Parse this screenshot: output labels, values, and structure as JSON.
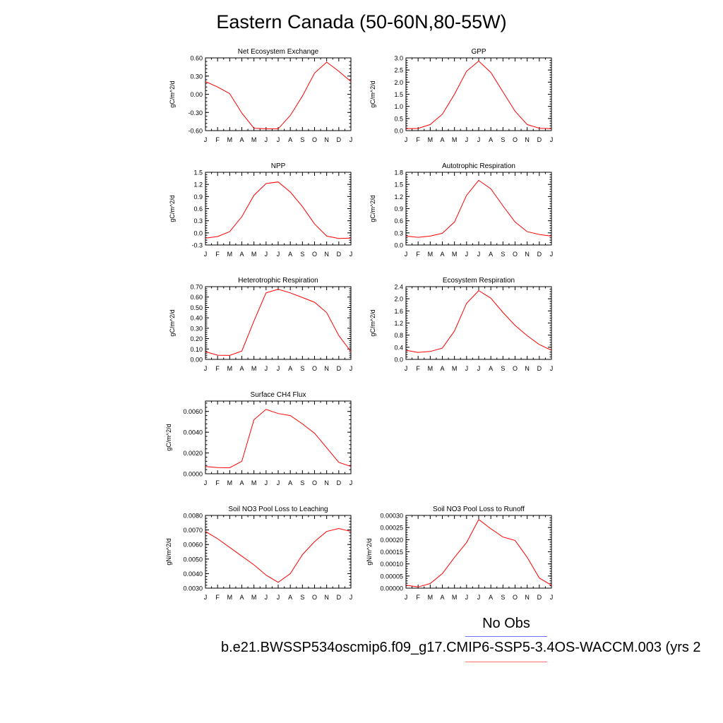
{
  "figure": {
    "title": "Eastern Canada (50-60N,80-55W)",
    "legend_label": "No Obs",
    "case_label": "b.e21.BWSSP534oscmip6.f09_g17.CMIP6-SSP5-3.4OS-WACCM.003 (yrs 2",
    "colors": {
      "model_line": "#ff0000",
      "obs_line": "#6f6fff",
      "model_legend_line": "#ff6f6f"
    }
  },
  "chart_data": [
    {
      "type": "line",
      "title": "Net Ecosystem Exchange",
      "ylabel": "gC/m^2/d",
      "categories": [
        "J",
        "F",
        "M",
        "A",
        "M",
        "J",
        "J",
        "A",
        "S",
        "O",
        "N",
        "D",
        "J"
      ],
      "values": [
        0.21,
        0.12,
        0.01,
        -0.31,
        -0.56,
        -0.57,
        -0.57,
        -0.35,
        -0.03,
        0.35,
        0.53,
        0.38,
        0.21
      ],
      "ylim": [
        -0.6,
        0.6
      ],
      "yticks": [
        "-0.60",
        "-0.30",
        "0.00",
        "0.30",
        "0.60"
      ]
    },
    {
      "type": "line",
      "title": "GPP",
      "ylabel": "gC/m^2/d",
      "categories": [
        "J",
        "F",
        "M",
        "A",
        "M",
        "J",
        "J",
        "A",
        "S",
        "O",
        "N",
        "D",
        "J"
      ],
      "values": [
        0.08,
        0.09,
        0.25,
        0.68,
        1.5,
        2.45,
        2.87,
        2.4,
        1.6,
        0.8,
        0.25,
        0.1,
        0.08
      ],
      "ylim": [
        0.0,
        3.0
      ],
      "yticks": [
        "0.0",
        "0.5",
        "1.0",
        "1.5",
        "2.0",
        "2.5",
        "3.0"
      ]
    },
    {
      "type": "line",
      "title": "NPP",
      "ylabel": "gC/m^2/d",
      "categories": [
        "J",
        "F",
        "M",
        "A",
        "M",
        "J",
        "J",
        "A",
        "S",
        "O",
        "N",
        "D",
        "J"
      ],
      "values": [
        -0.13,
        -0.09,
        0.03,
        0.4,
        0.93,
        1.22,
        1.26,
        1.01,
        0.65,
        0.22,
        -0.08,
        -0.14,
        -0.13
      ],
      "ylim": [
        -0.3,
        1.5
      ],
      "yticks": [
        "-0.3",
        "0.0",
        "0.3",
        "0.6",
        "0.9",
        "1.2",
        "1.5"
      ]
    },
    {
      "type": "line",
      "title": "Autotrophic Respiration",
      "ylabel": "gC/m^2/d",
      "categories": [
        "J",
        "F",
        "M",
        "A",
        "M",
        "J",
        "J",
        "A",
        "S",
        "O",
        "N",
        "D",
        "J"
      ],
      "values": [
        0.22,
        0.19,
        0.22,
        0.29,
        0.57,
        1.23,
        1.6,
        1.39,
        0.97,
        0.57,
        0.33,
        0.26,
        0.22
      ],
      "ylim": [
        0.0,
        1.8
      ],
      "yticks": [
        "0.0",
        "0.3",
        "0.6",
        "0.9",
        "1.2",
        "1.5",
        "1.8"
      ]
    },
    {
      "type": "line",
      "title": "Heterotrophic Respiration",
      "ylabel": "gC/m^2/d",
      "categories": [
        "J",
        "F",
        "M",
        "A",
        "M",
        "J",
        "J",
        "A",
        "S",
        "O",
        "N",
        "D",
        "J"
      ],
      "values": [
        0.075,
        0.04,
        0.038,
        0.08,
        0.37,
        0.64,
        0.675,
        0.64,
        0.595,
        0.55,
        0.45,
        0.23,
        0.075
      ],
      "ylim": [
        0.0,
        0.7
      ],
      "yticks": [
        "0.00",
        "0.10",
        "0.20",
        "0.30",
        "0.40",
        "0.50",
        "0.60",
        "0.70"
      ]
    },
    {
      "type": "line",
      "title": "Ecosystem Respiration",
      "ylabel": "gC/m^2/d",
      "categories": [
        "J",
        "F",
        "M",
        "A",
        "M",
        "J",
        "J",
        "A",
        "S",
        "O",
        "N",
        "D",
        "J"
      ],
      "values": [
        0.3,
        0.23,
        0.26,
        0.37,
        0.94,
        1.85,
        2.27,
        2.02,
        1.55,
        1.12,
        0.78,
        0.49,
        0.3
      ],
      "ylim": [
        0.0,
        2.4
      ],
      "yticks": [
        "0.0",
        "0.4",
        "0.8",
        "1.2",
        "1.6",
        "2.0",
        "2.4"
      ]
    },
    {
      "type": "line",
      "title": "Surface CH4 Flux",
      "ylabel": "gC/m^2/d",
      "categories": [
        "J",
        "F",
        "M",
        "A",
        "M",
        "J",
        "J",
        "A",
        "S",
        "O",
        "N",
        "D",
        "J"
      ],
      "values": [
        0.0007,
        0.0006,
        0.00058,
        0.0012,
        0.0052,
        0.0062,
        0.0058,
        0.0056,
        0.0048,
        0.0039,
        0.0025,
        0.0011,
        0.0007
      ],
      "ylim": [
        0.0,
        0.007
      ],
      "yticks": [
        "0.0000",
        "0.0020",
        "0.0040",
        "0.0060"
      ]
    },
    {
      "type": "line",
      "title": "Soil NO3 Pool Loss to Leaching",
      "ylabel": "gN/m^2/d",
      "categories": [
        "J",
        "F",
        "M",
        "A",
        "M",
        "J",
        "J",
        "A",
        "S",
        "O",
        "N",
        "D",
        "J"
      ],
      "values": [
        0.0069,
        0.0064,
        0.0058,
        0.0052,
        0.0046,
        0.0039,
        0.0034,
        0.004,
        0.0053,
        0.0062,
        0.0069,
        0.0071,
        0.0069
      ],
      "ylim": [
        0.003,
        0.008
      ],
      "yticks": [
        "0.0030",
        "0.0040",
        "0.0050",
        "0.0060",
        "0.0070",
        "0.0080"
      ]
    },
    {
      "type": "line",
      "title": "Soil NO3 Pool Loss to Runoff",
      "ylabel": "gN/m^2/d",
      "categories": [
        "J",
        "F",
        "M",
        "A",
        "M",
        "J",
        "J",
        "A",
        "S",
        "O",
        "N",
        "D",
        "J"
      ],
      "values": [
        1.2e-05,
        5e-06,
        1.9e-05,
        6e-05,
        0.000127,
        0.000188,
        0.000283,
        0.000245,
        0.000211,
        0.000197,
        0.000127,
        4.2e-05,
        1.2e-05
      ],
      "ylim": [
        0.0,
        0.0003
      ],
      "yticks": [
        "0.00000",
        "0.00005",
        "0.00010",
        "0.00015",
        "0.00020",
        "0.00025",
        "0.00030"
      ]
    }
  ]
}
